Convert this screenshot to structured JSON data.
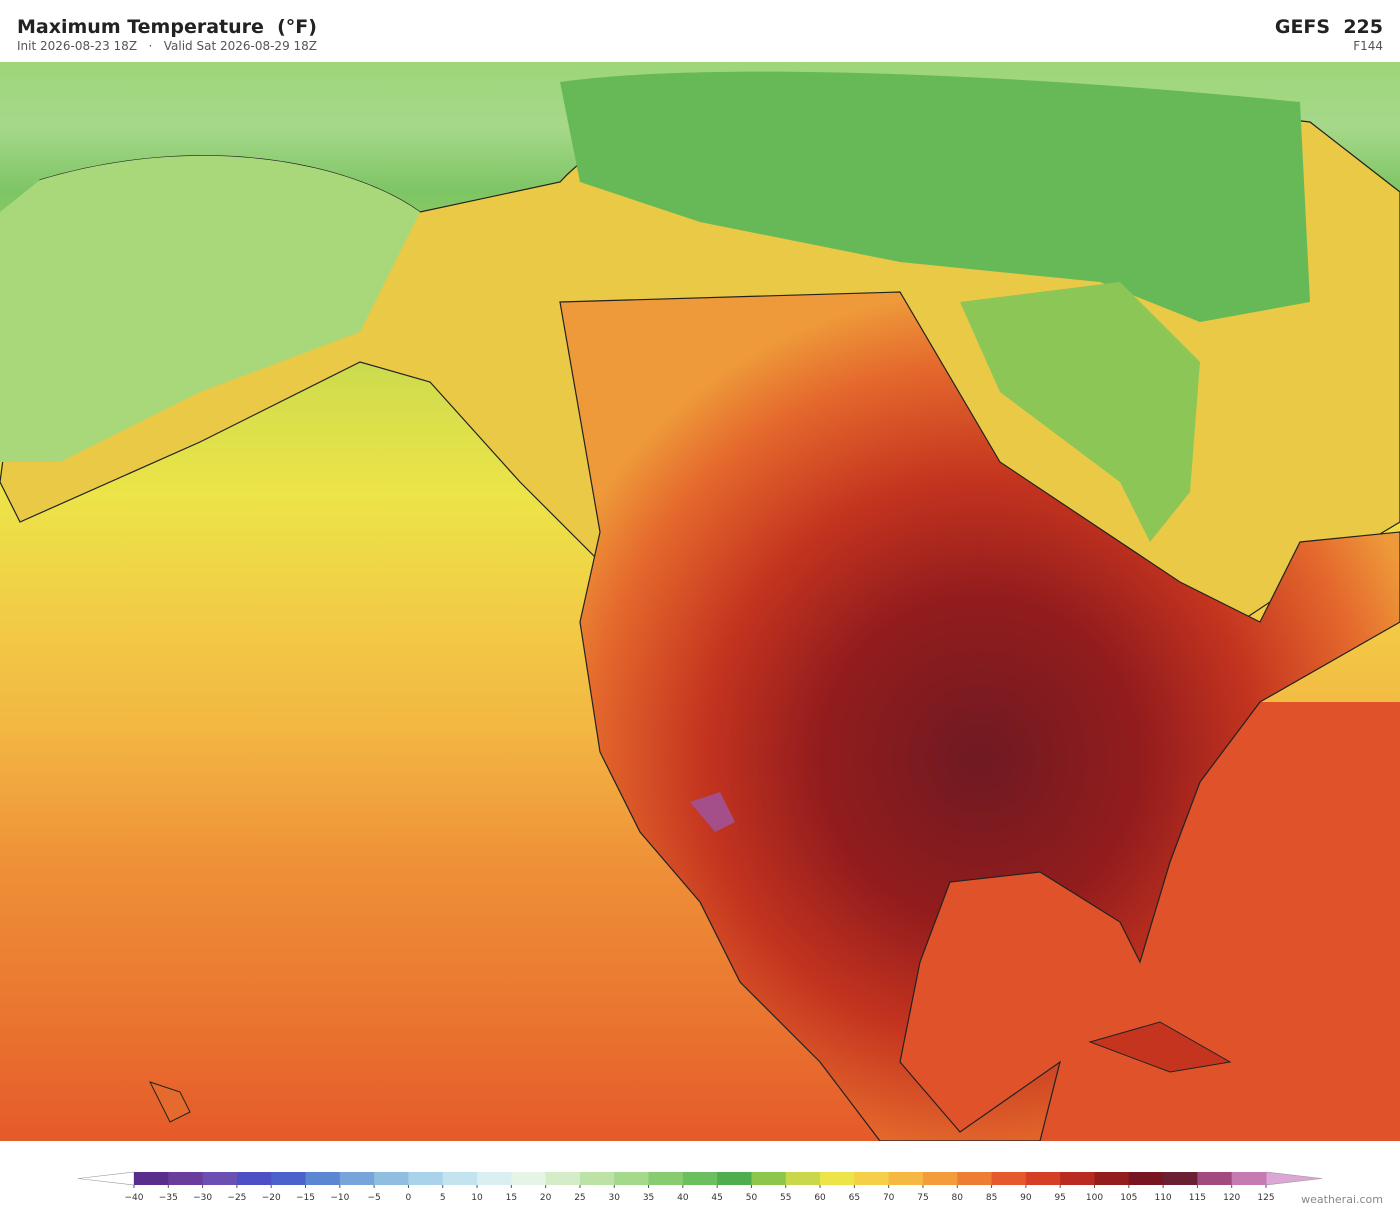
{
  "header": {
    "title": "Maximum Temperature  (°F)",
    "subtitle": "Init 2026-08-23 18Z   ·   Valid Sat 2026-08-29 18Z",
    "model": "GEFS  225",
    "forecast_hour": "F144"
  },
  "colorbar": {
    "ticks": [
      {
        "value": -40,
        "label": "−40"
      },
      {
        "value": -35,
        "label": "−35"
      },
      {
        "value": -30,
        "label": "−30"
      },
      {
        "value": -25,
        "label": "−25"
      },
      {
        "value": -20,
        "label": "−20"
      },
      {
        "value": -15,
        "label": "−15"
      },
      {
        "value": -10,
        "label": "−10"
      },
      {
        "value": -5,
        "label": "−5"
      },
      0,
      5,
      10,
      15,
      20,
      25,
      30,
      35,
      40,
      45,
      50,
      55,
      60,
      65,
      70,
      75,
      80,
      85,
      90,
      95,
      100,
      105,
      110,
      115,
      120,
      125
    ],
    "colors": [
      "#5a2d8c",
      "#6a3c9c",
      "#6b4fb2",
      "#4c50c4",
      "#4b62cc",
      "#5b86d1",
      "#77a4d9",
      "#90bee1",
      "#a9d3ea",
      "#c3e3ef",
      "#daeff2",
      "#e6f4e8",
      "#d4ecc8",
      "#bde2a6",
      "#a4d88a",
      "#88cc72",
      "#6cbf5f",
      "#4ead4f",
      "#8cc64c",
      "#c9d84a",
      "#ece448",
      "#f4cf47",
      "#f4b843",
      "#f29c3c",
      "#ec7d32",
      "#e55a2a",
      "#d43f25",
      "#b82a22",
      "#931c1d",
      "#771622",
      "#6b1f33",
      "#a24a80",
      "#c67ab2"
    ],
    "under_color": "#ffffff",
    "over_color": "#dca6d6"
  },
  "footer": {
    "credit": "weatherai.com"
  }
}
